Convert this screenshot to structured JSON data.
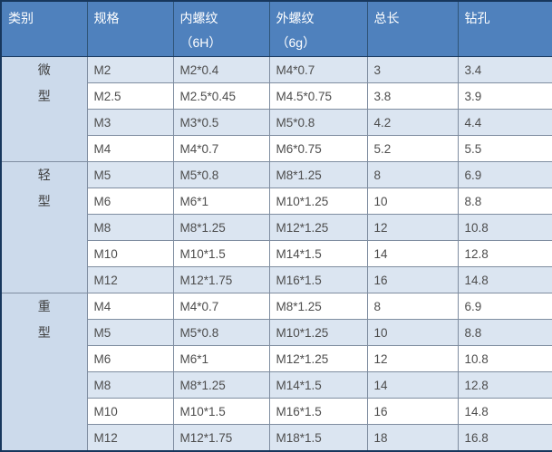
{
  "colors": {
    "outer_border": "#17375d",
    "grid_line": "#7f8da0",
    "header_background": "#4f81bd",
    "header_grid_line": "#2f5478",
    "header_text": "#ffffff",
    "body_text": "#4d4d4d",
    "zebra_row": "#dbe5f1",
    "category_column": "#ccdaeb",
    "plain_row": "#ffffff"
  },
  "chart_data": {
    "type": "table",
    "title": "",
    "columns": [
      "类别",
      "规格",
      "内螺纹",
      "外螺纹",
      "总长",
      "钻孔"
    ],
    "header_line2": [
      "",
      "",
      "（6H）",
      "（6g）",
      "",
      ""
    ],
    "groups": [
      {
        "category": "微型",
        "rows": [
          [
            "M2",
            "M2*0.4",
            "M4*0.7",
            "3",
            "3.4"
          ],
          [
            "M2.5",
            "M2.5*0.45",
            "M4.5*0.75",
            "3.8",
            "3.9"
          ],
          [
            "M3",
            "M3*0.5",
            "M5*0.8",
            "4.2",
            "4.4"
          ],
          [
            "M4",
            "M4*0.7",
            "M6*0.75",
            "5.2",
            "5.5"
          ]
        ]
      },
      {
        "category": "轻型",
        "rows": [
          [
            "M5",
            "M5*0.8",
            "M8*1.25",
            "8",
            "6.9"
          ],
          [
            "M6",
            "M6*1",
            "M10*1.25",
            "10",
            "8.8"
          ],
          [
            "M8",
            "M8*1.25",
            "M12*1.25",
            "12",
            "10.8"
          ],
          [
            "M10",
            "M10*1.5",
            "M14*1.5",
            "14",
            "12.8"
          ],
          [
            "M12",
            "M12*1.75",
            "M16*1.5",
            "16",
            "14.8"
          ]
        ]
      },
      {
        "category": "重型",
        "rows": [
          [
            "M4",
            "M4*0.7",
            "M8*1.25",
            "8",
            "6.9"
          ],
          [
            "M5",
            "M5*0.8",
            "M10*1.25",
            "10",
            "8.8"
          ],
          [
            "M6",
            "M6*1",
            "M12*1.25",
            "12",
            "10.8"
          ],
          [
            "M8",
            "M8*1.25",
            "M14*1.5",
            "14",
            "12.8"
          ],
          [
            "M10",
            "M10*1.5",
            "M16*1.5",
            "16",
            "14.8"
          ],
          [
            "M12",
            "M12*1.75",
            "M18*1.5",
            "18",
            "16.8"
          ]
        ]
      }
    ]
  }
}
